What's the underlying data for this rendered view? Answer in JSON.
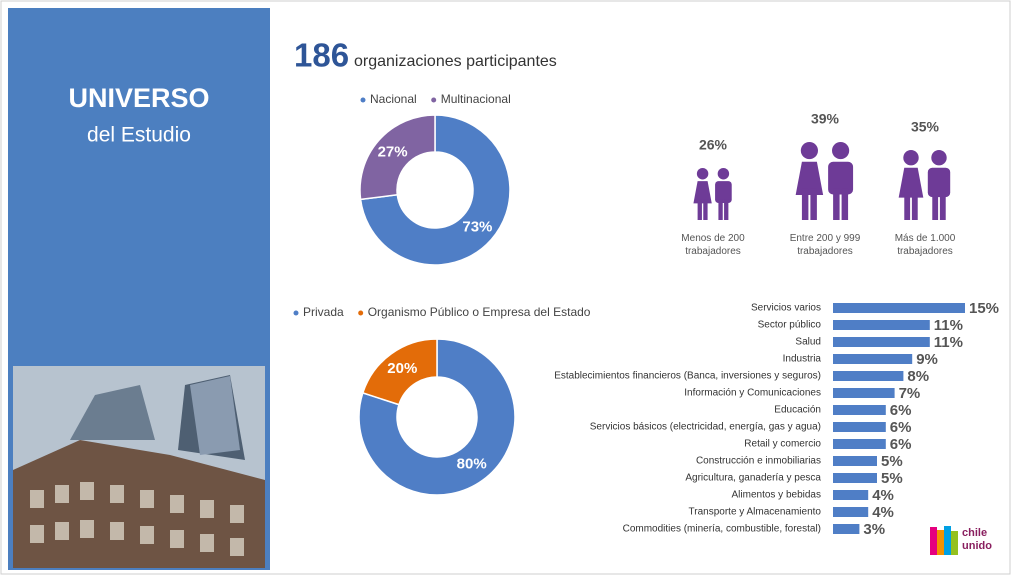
{
  "sidebar": {
    "title": "UNIVERSO",
    "subtitle": "del Estudio"
  },
  "headline": {
    "number": "186",
    "text": "organizaciones participantes"
  },
  "chart_data": [
    {
      "type": "donut",
      "categories": [
        "Nacional",
        "Multinacional"
      ],
      "values": [
        73,
        27
      ],
      "value_labels": [
        "73%",
        "27%"
      ],
      "colors": [
        "#4f7ec6",
        "#8064a2"
      ]
    },
    {
      "type": "donut",
      "categories": [
        "Privada",
        "Organismo Público o Empresa del Estado"
      ],
      "values": [
        80,
        20
      ],
      "value_labels": [
        "80%",
        "20%"
      ],
      "colors": [
        "#4f7ec6",
        "#e36c09"
      ]
    },
    {
      "type": "pictogram",
      "categories": [
        "Menos de 200 trabajadores",
        "Entre 200 y 999 trabajadores",
        "Más de 1.000 trabajadores"
      ],
      "values": [
        26,
        39,
        35
      ],
      "value_labels": [
        "26%",
        "39%",
        "35%"
      ],
      "color": "#6e3b97"
    },
    {
      "type": "hbar",
      "categories": [
        "Servicios varios",
        "Sector público",
        "Salud",
        "Industria",
        "Establecimientos financieros (Banca, inversiones y seguros)",
        "Información y Comunicaciones",
        "Educación",
        "Servicios básicos (electricidad, energía, gas y agua)",
        "Retail y comercio",
        "Construcción e inmobiliarias",
        "Agricultura, ganadería y pesca",
        "Alimentos y bebidas",
        "Transporte y Almacenamiento",
        "Commodities (minería, combustible, forestal)"
      ],
      "values": [
        15,
        11,
        11,
        9,
        8,
        7,
        6,
        6,
        6,
        5,
        5,
        4,
        4,
        3
      ],
      "value_labels": [
        "15%",
        "11%",
        "11%",
        "9%",
        "8%",
        "7%",
        "6%",
        "6%",
        "6%",
        "5%",
        "5%",
        "4%",
        "4%",
        "3%"
      ],
      "color": "#4f7ec6"
    }
  ],
  "logo": {
    "lines": [
      "chile",
      "unido"
    ]
  }
}
